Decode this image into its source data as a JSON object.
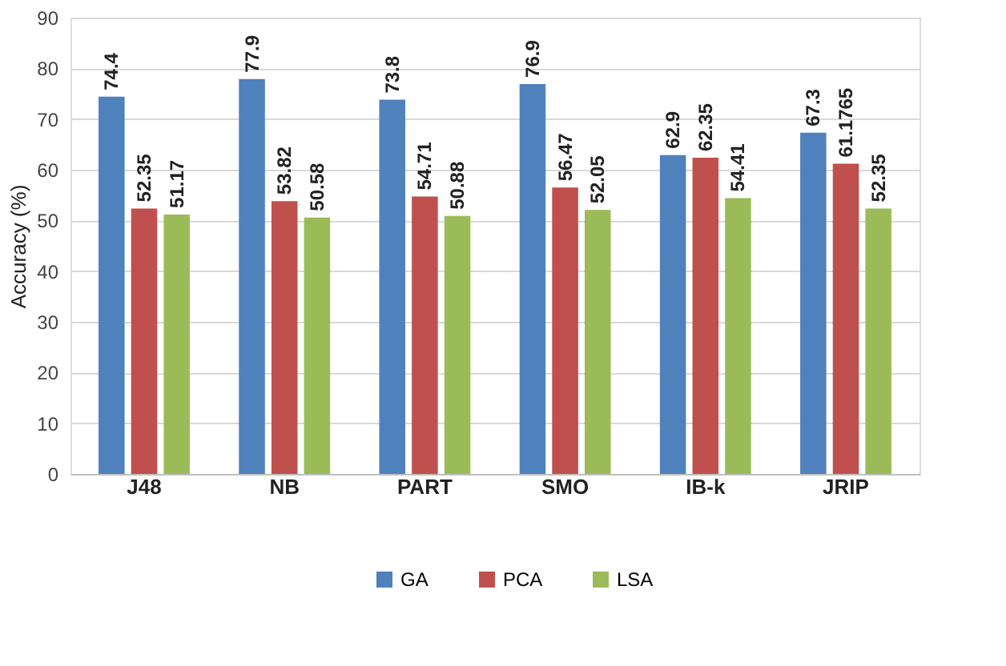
{
  "chart_data": {
    "type": "bar",
    "ylabel": "Accuracy (%)",
    "categories": [
      "J48",
      "NB",
      "PART",
      "SMO",
      "IB-k",
      "JRIP"
    ],
    "series": [
      {
        "name": "GA",
        "color": "#4f81bd",
        "values": [
          74.4,
          77.9,
          73.8,
          76.9,
          62.9,
          67.3
        ]
      },
      {
        "name": "PCA",
        "color": "#c0504d",
        "values": [
          52.35,
          53.82,
          54.71,
          56.47,
          62.35,
          61.1765
        ]
      },
      {
        "name": "LSA",
        "color": "#9bbb59",
        "values": [
          51.17,
          50.58,
          50.88,
          52.05,
          54.41,
          52.35
        ]
      }
    ],
    "ylim": [
      0,
      90
    ],
    "yticks": [
      0,
      10,
      20,
      30,
      40,
      50,
      60,
      70,
      80,
      90
    ],
    "grid": "y",
    "legend": "bottom",
    "data_labels": true
  }
}
